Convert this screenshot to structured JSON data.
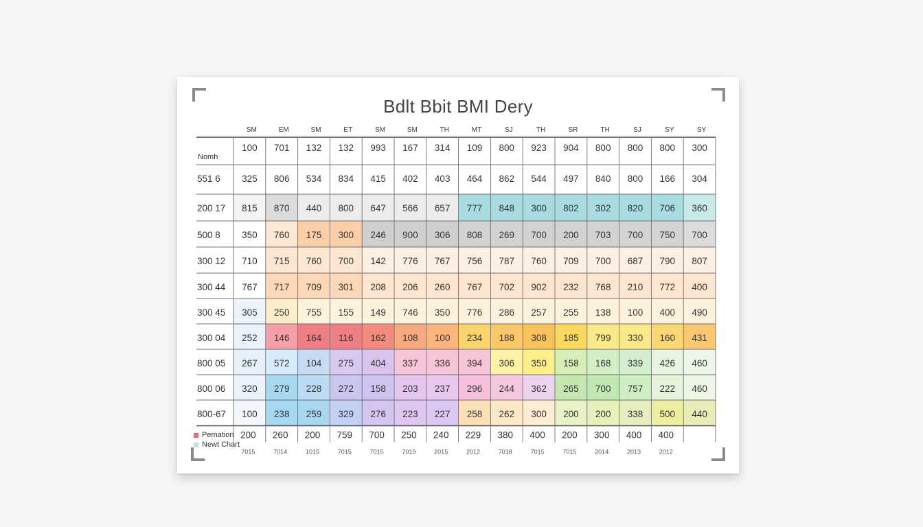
{
  "chart_data": {
    "type": "table",
    "title": "Bdlt Bbit BMI Dery",
    "column_headers": [
      "SM",
      "EM",
      "SM",
      "ET",
      "SM",
      "SM",
      "TH",
      "MT",
      "SJ",
      "TH",
      "SR",
      "TH",
      "SJ",
      "SY",
      "SY"
    ],
    "row_header_label": "Nomh",
    "rows": [
      {
        "label": "",
        "values": [
          "100",
          "701",
          "132",
          "132",
          "993",
          "167",
          "314",
          "109",
          "800",
          "923",
          "904",
          "800",
          "800",
          "800",
          "300"
        ]
      },
      {
        "label": "551 6",
        "values": [
          "325",
          "806",
          "534",
          "834",
          "415",
          "402",
          "403",
          "464",
          "862",
          "544",
          "497",
          "840",
          "800",
          "166",
          "304"
        ]
      },
      {
        "label": "200 17",
        "values": [
          "815",
          "870",
          "440",
          "800",
          "647",
          "566",
          "657",
          "777",
          "848",
          "300",
          "802",
          "302",
          "820",
          "706",
          "360"
        ]
      },
      {
        "label": "500 8",
        "values": [
          "350",
          "760",
          "175",
          "300",
          "246",
          "900",
          "306",
          "808",
          "269",
          "700",
          "200",
          "703",
          "700",
          "750",
          "700"
        ]
      },
      {
        "label": "300 12",
        "values": [
          "710",
          "715",
          "760",
          "700",
          "142",
          "776",
          "767",
          "756",
          "787",
          "760",
          "709",
          "700",
          "687",
          "790",
          "807"
        ]
      },
      {
        "label": "300 44",
        "values": [
          "767",
          "717",
          "709",
          "301",
          "208",
          "206",
          "260",
          "767",
          "702",
          "902",
          "232",
          "768",
          "210",
          "772",
          "400"
        ]
      },
      {
        "label": "300 45",
        "values": [
          "305",
          "250",
          "755",
          "155",
          "149",
          "746",
          "350",
          "776",
          "286",
          "257",
          "255",
          "138",
          "100",
          "400",
          "490"
        ]
      },
      {
        "label": "300 04",
        "values": [
          "252",
          "146",
          "164",
          "116",
          "162",
          "108",
          "100",
          "234",
          "188",
          "308",
          "185",
          "799",
          "330",
          "160",
          "431"
        ]
      },
      {
        "label": "800 05",
        "values": [
          "267",
          "572",
          "104",
          "275",
          "404",
          "337",
          "336",
          "394",
          "306",
          "350",
          "158",
          "168",
          "339",
          "426",
          "460"
        ]
      },
      {
        "label": "800 06",
        "values": [
          "320",
          "279",
          "228",
          "272",
          "158",
          "203",
          "237",
          "296",
          "244",
          "362",
          "265",
          "700",
          "757",
          "222",
          "460"
        ]
      },
      {
        "label": "800-67",
        "values": [
          "100",
          "238",
          "259",
          "329",
          "276",
          "223",
          "227",
          "258",
          "262",
          "300",
          "200",
          "200",
          "338",
          "500",
          "440"
        ]
      }
    ],
    "footer_values": [
      "200",
      "260",
      "200",
      "759",
      "700",
      "250",
      "240",
      "229",
      "380",
      "400",
      "200",
      "300",
      "400",
      "400"
    ],
    "footer_years": [
      "7015",
      "7014",
      "1015",
      "7015",
      "7015",
      "7019",
      "2015",
      "2012",
      "7018",
      "7015",
      "7015",
      "2014",
      "2013",
      "2012"
    ],
    "legend": [
      {
        "label": "Pemation",
        "color": "#e07080"
      },
      {
        "label": "Newt Chart",
        "color": "#c9dcdc"
      }
    ],
    "cell_colors": [
      [
        "#ffffff",
        "#ffffff",
        "#ffffff",
        "#ffffff",
        "#ffffff",
        "#ffffff",
        "#ffffff",
        "#ffffff",
        "#ffffff",
        "#ffffff",
        "#ffffff",
        "#ffffff",
        "#ffffff",
        "#ffffff",
        "#ffffff"
      ],
      [
        "#ffffff",
        "#ffffff",
        "#ffffff",
        "#ffffff",
        "#ffffff",
        "#ffffff",
        "#ffffff",
        "#ffffff",
        "#ffffff",
        "#ffffff",
        "#ffffff",
        "#ffffff",
        "#ffffff",
        "#ffffff",
        "#ffffff"
      ],
      [
        "#f4f4f4",
        "#dcdcdc",
        "#ececec",
        "#ececec",
        "#ececec",
        "#ececec",
        "#ececec",
        "#a8dce0",
        "#a8dce0",
        "#a8dce0",
        "#a8dce0",
        "#a8dce0",
        "#a8dce0",
        "#a8dce0",
        "#c8e8ea"
      ],
      [
        "#ffffff",
        "#fde8d6",
        "#fccfa8",
        "#fccfa8",
        "#cfcfcf",
        "#cfcfcf",
        "#cfcfcf",
        "#d2d2d2",
        "#d2d2d2",
        "#d2d2d2",
        "#d2d2d2",
        "#d2d2d2",
        "#d4d4d4",
        "#d4d4d4",
        "#dcdcdc"
      ],
      [
        "#ffffff",
        "#fde6d2",
        "#fde6d2",
        "#fde6d2",
        "#fdf0e4",
        "#fdf0e4",
        "#fdf0e4",
        "#fdf0e4",
        "#fdf0e4",
        "#fdf0e4",
        "#fdf0e4",
        "#fdf0e4",
        "#fdf0e4",
        "#fdf0e4",
        "#fdf0e4"
      ],
      [
        "#ffffff",
        "#fcd7b8",
        "#fcd7b8",
        "#fcd7b8",
        "#fde5cf",
        "#fde5cf",
        "#fde5cf",
        "#fde5cf",
        "#fde5cf",
        "#fde5cf",
        "#fde5cf",
        "#fde5cf",
        "#fde5cf",
        "#fde5cf",
        "#fde5cf"
      ],
      [
        "#eef4fb",
        "#fdedc8",
        "#fdf3dc",
        "#fdf3dc",
        "#fdf3dc",
        "#fdf3dc",
        "#fdf3dc",
        "#fdf3dc",
        "#fdf3dc",
        "#fdf3dc",
        "#fdf3dc",
        "#fdf3dc",
        "#fdf3dc",
        "#fdf3dc",
        "#fdf3dc"
      ],
      [
        "#eaf2fb",
        "#f5a0a8",
        "#ef7f84",
        "#ef7f84",
        "#f38b7e",
        "#f8a97e",
        "#fbb57c",
        "#fbd46d",
        "#fbc869",
        "#f9c25c",
        "#fbd95f",
        "#fbe98a",
        "#fbe98a",
        "#fbd776",
        "#fbc770"
      ],
      [
        "#e6f0fb",
        "#d8ebfa",
        "#c7dbf5",
        "#d9c8ef",
        "#d8c3ef",
        "#f6c6d8",
        "#f6c6d8",
        "#f6c6d8",
        "#fdf2a6",
        "#fdf08a",
        "#d7efb7",
        "#d4eec8",
        "#d5efd0",
        "#e8f4e2",
        "#eef6ea"
      ],
      [
        "#edf3fb",
        "#a6d9f0",
        "#bcdcf4",
        "#cbc6ef",
        "#cfc4ef",
        "#e5c6ef",
        "#e8c8ef",
        "#f6c0dc",
        "#f6c8e0",
        "#ecd4ef",
        "#c5e8b2",
        "#c1e8b5",
        "#cfeec3",
        "#e6f4dd",
        "#eef6e8"
      ],
      [
        "#f3f6fb",
        "#a7d8f2",
        "#a9d7f0",
        "#c3d2f4",
        "#d4c4f0",
        "#dfc6f1",
        "#dcc8f3",
        "#fde0b8",
        "#fde8c6",
        "#fdedd2",
        "#e8f3c8",
        "#e8f1bc",
        "#e8eec0",
        "#eeeea0",
        "#e8ecb6"
      ]
    ]
  }
}
